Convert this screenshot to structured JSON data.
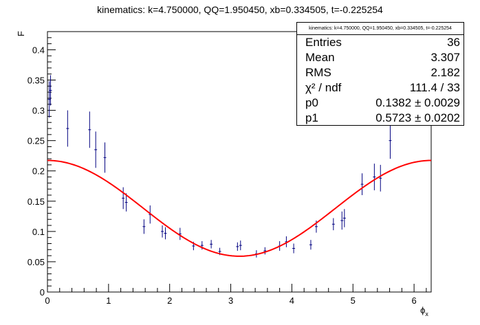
{
  "chart_data": {
    "type": "scatter",
    "title": "kinematics: k=4.750000, QQ=1.950450, xb=0.334505, t=-0.225254",
    "xlabel": "ϕ",
    "xlabel_sub": "x",
    "ylabel": "F",
    "xlim": [
      0,
      6.28
    ],
    "ylim": [
      0,
      0.43
    ],
    "x_ticks": [
      0,
      1,
      2,
      3,
      4,
      5,
      6
    ],
    "y_ticks": [
      0,
      0.05,
      0.1,
      0.15,
      0.2,
      0.25,
      0.3,
      0.35,
      0.4
    ],
    "y_tick_labels": [
      "0",
      "0.05",
      "0.1",
      "0.15",
      "0.2",
      "0.25",
      "0.3",
      "0.35",
      "0.4"
    ],
    "marker_color": "#000080",
    "fit_color": "#ff0000",
    "points": [
      {
        "x": 0.03,
        "y": 0.318,
        "err": 0.03
      },
      {
        "x": 0.05,
        "y": 0.333,
        "err": 0.025
      },
      {
        "x": 0.33,
        "y": 0.27,
        "err": 0.03
      },
      {
        "x": 0.69,
        "y": 0.268,
        "err": 0.03
      },
      {
        "x": 0.79,
        "y": 0.235,
        "err": 0.03
      },
      {
        "x": 0.94,
        "y": 0.222,
        "err": 0.025
      },
      {
        "x": 1.24,
        "y": 0.155,
        "err": 0.018
      },
      {
        "x": 1.29,
        "y": 0.148,
        "err": 0.015
      },
      {
        "x": 1.58,
        "y": 0.108,
        "err": 0.012
      },
      {
        "x": 1.68,
        "y": 0.128,
        "err": 0.015
      },
      {
        "x": 1.88,
        "y": 0.1,
        "err": 0.01
      },
      {
        "x": 1.93,
        "y": 0.097,
        "err": 0.01
      },
      {
        "x": 2.17,
        "y": 0.096,
        "err": 0.01
      },
      {
        "x": 2.39,
        "y": 0.076,
        "err": 0.007
      },
      {
        "x": 2.53,
        "y": 0.077,
        "err": 0.007
      },
      {
        "x": 2.68,
        "y": 0.079,
        "err": 0.007
      },
      {
        "x": 2.82,
        "y": 0.067,
        "err": 0.006
      },
      {
        "x": 3.11,
        "y": 0.075,
        "err": 0.007
      },
      {
        "x": 3.16,
        "y": 0.077,
        "err": 0.008
      },
      {
        "x": 3.42,
        "y": 0.063,
        "err": 0.006
      },
      {
        "x": 3.56,
        "y": 0.068,
        "err": 0.006
      },
      {
        "x": 3.8,
        "y": 0.076,
        "err": 0.008
      },
      {
        "x": 3.91,
        "y": 0.083,
        "err": 0.009
      },
      {
        "x": 4.03,
        "y": 0.072,
        "err": 0.008
      },
      {
        "x": 4.31,
        "y": 0.078,
        "err": 0.008
      },
      {
        "x": 4.4,
        "y": 0.108,
        "err": 0.01
      },
      {
        "x": 4.68,
        "y": 0.112,
        "err": 0.01
      },
      {
        "x": 4.82,
        "y": 0.118,
        "err": 0.015
      },
      {
        "x": 4.86,
        "y": 0.122,
        "err": 0.015
      },
      {
        "x": 5.15,
        "y": 0.178,
        "err": 0.018
      },
      {
        "x": 5.35,
        "y": 0.19,
        "err": 0.022
      },
      {
        "x": 5.45,
        "y": 0.188,
        "err": 0.022
      },
      {
        "x": 5.61,
        "y": 0.25,
        "err": 0.03
      }
    ],
    "fit": {
      "p0": 0.1382,
      "p1": 0.5723
    }
  },
  "statbox": {
    "title": "kinematics: k=4.750000, QQ=1.950450, xb=0.334505, t=-0.225254",
    "rows": [
      {
        "label": "Entries",
        "value": "36"
      },
      {
        "label": "Mean",
        "value": "3.307"
      },
      {
        "label": "RMS",
        "value": "2.182"
      },
      {
        "label": "χ² / ndf",
        "value": "111.4 / 33"
      },
      {
        "label": "p0",
        "value": "0.1382 ± 0.0029"
      },
      {
        "label": "p1",
        "value": "0.5723 ± 0.0202"
      }
    ]
  }
}
